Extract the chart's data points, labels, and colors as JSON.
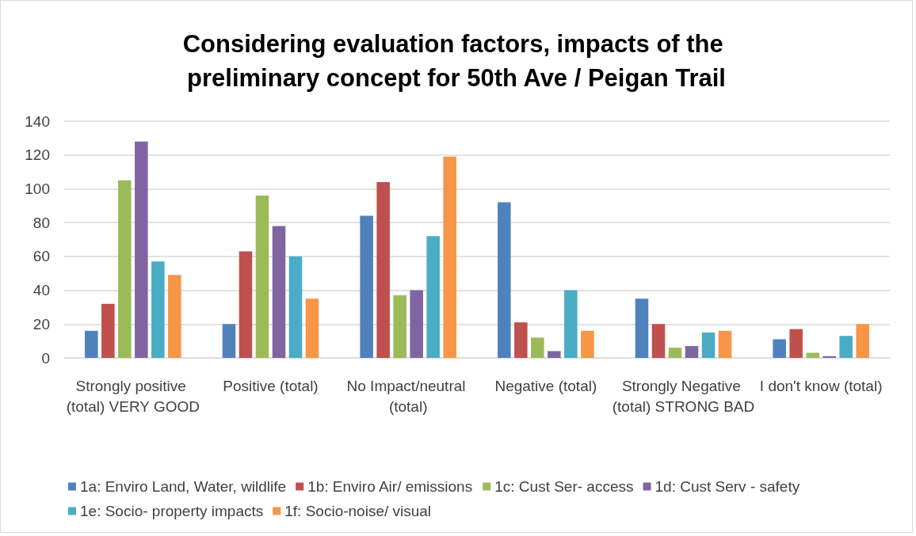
{
  "chart_data": {
    "type": "bar",
    "title": "Considering evaluation factors, impacts of the preliminary concept for 50th Ave / Peigan Trail",
    "categories": [
      "Strongly positive (total) VERY GOOD",
      "Positive (total)",
      "No Impact/neutral (total)",
      "Negative (total)",
      "Strongly Negative (total) STRONG BAD",
      "I don't know (total)"
    ],
    "series": [
      {
        "name": "1a: Enviro Land, Water, wildlife",
        "color": "#4f81bd",
        "values": [
          16,
          20,
          84,
          92,
          35,
          11
        ]
      },
      {
        "name": "1b: Enviro Air/ emissions",
        "color": "#c0504d",
        "values": [
          32,
          63,
          104,
          21,
          20,
          17
        ]
      },
      {
        "name": "1c: Cust Ser- access",
        "color": "#9bbb59",
        "values": [
          105,
          96,
          37,
          12,
          6,
          3
        ]
      },
      {
        "name": "1d: Cust Serv - safety",
        "color": "#8064a2",
        "values": [
          128,
          78,
          40,
          4,
          7,
          1
        ]
      },
      {
        "name": "1e: Socio- property impacts",
        "color": "#4bacc6",
        "values": [
          57,
          60,
          72,
          40,
          15,
          13
        ]
      },
      {
        "name": "1f: Socio-noise/ visual",
        "color": "#f79646",
        "values": [
          49,
          35,
          119,
          16,
          16,
          20
        ]
      }
    ],
    "ylim": [
      0,
      140
    ],
    "yticks": [
      0,
      20,
      40,
      60,
      80,
      100,
      120,
      140
    ],
    "grid": "y",
    "legend": "bottom"
  }
}
